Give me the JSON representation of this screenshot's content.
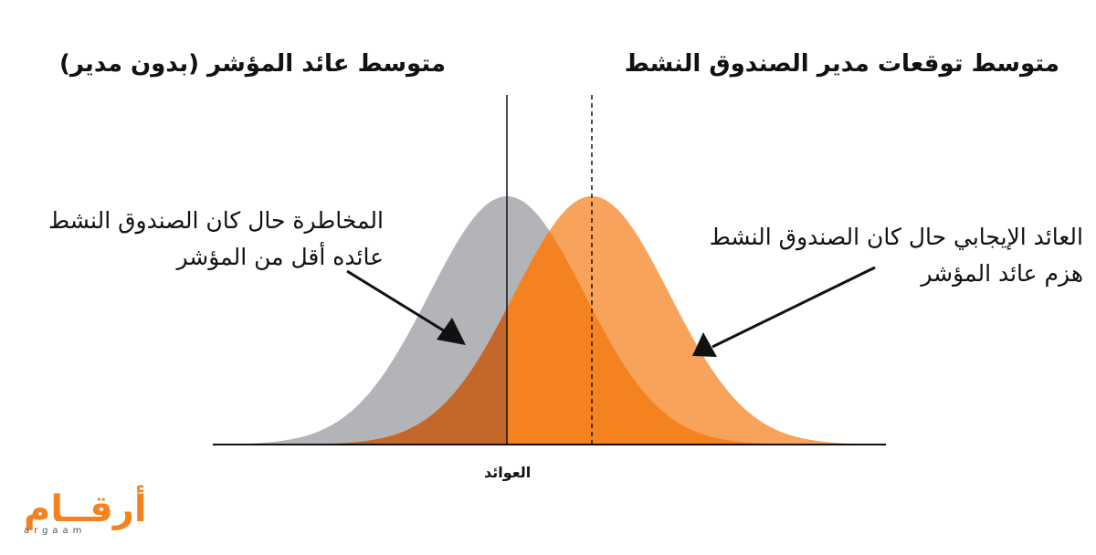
{
  "titles": {
    "right": "متوسط توقعات مدير الصندوق النشط",
    "left": "متوسط عائد المؤشر (بدون مدير)"
  },
  "annotations": {
    "risk_line1": "المخاطرة حال كان الصندوق النشط",
    "risk_line2": "عائده أقل من المؤشر",
    "gain_line1": "العائد الإيجابي حال كان الصندوق النشط",
    "gain_line2": "هزم عائد المؤشر"
  },
  "axis": {
    "x_label": "العوائد"
  },
  "logo": {
    "arabic": "أرقــام",
    "latin": "argaam"
  },
  "colors": {
    "index_curve": "#b3b4b8",
    "fund_curve": "#f7a35c",
    "positive_region": "#f58220",
    "risk_region": "#c4672a",
    "line": "#111111"
  }
}
